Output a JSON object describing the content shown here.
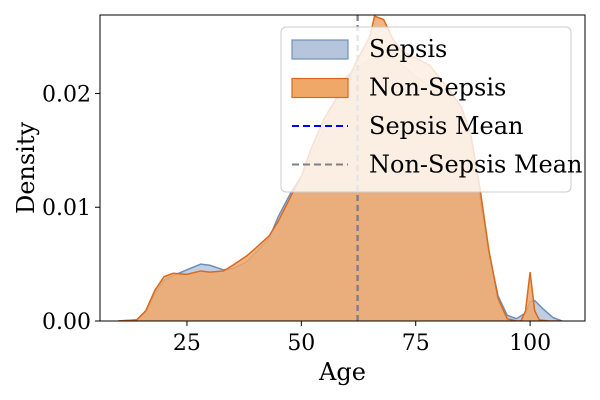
{
  "chart_data": {
    "type": "area",
    "xlabel": "Age",
    "ylabel": "Density",
    "xlim": [
      6,
      112
    ],
    "ylim": [
      0,
      0.0269
    ],
    "x_ticks": [
      25,
      50,
      75,
      100
    ],
    "x_tick_labels": [
      "25",
      "50",
      "75",
      "100"
    ],
    "y_ticks": [
      0,
      0.01,
      0.02
    ],
    "y_tick_labels": [
      "0.00",
      "0.01",
      "0.02"
    ],
    "grid": false,
    "legend_position": "top-right",
    "series": [
      {
        "name": "Sepsis",
        "kind": "density",
        "color": "#6f8fb8",
        "fill": "#b5c6dc",
        "x": [
          10,
          14,
          16,
          18,
          20,
          22,
          25,
          28,
          30,
          33,
          35,
          38,
          40,
          43,
          45,
          48,
          50,
          52,
          55,
          58,
          60,
          62,
          65,
          68,
          70,
          72,
          75,
          78,
          80,
          82,
          85,
          87,
          89,
          91,
          93,
          95,
          97,
          99,
          100,
          101,
          103,
          105,
          107
        ],
        "y": [
          0.0,
          0.0001,
          0.0008,
          0.0024,
          0.0036,
          0.004,
          0.0045,
          0.005,
          0.0049,
          0.0045,
          0.0046,
          0.0052,
          0.006,
          0.0073,
          0.0092,
          0.0115,
          0.0127,
          0.0145,
          0.017,
          0.02,
          0.0215,
          0.0222,
          0.023,
          0.0232,
          0.0232,
          0.0225,
          0.0215,
          0.0207,
          0.0205,
          0.02,
          0.0185,
          0.016,
          0.011,
          0.006,
          0.0022,
          0.0005,
          0.0002,
          0.0007,
          0.0017,
          0.0018,
          0.001,
          0.0003,
          0.0
        ]
      },
      {
        "name": "Non-Sepsis",
        "kind": "density",
        "color": "#d9691f",
        "fill": "#f0a868",
        "x": [
          10,
          14,
          16,
          18,
          20,
          22,
          25,
          28,
          30,
          33,
          35,
          38,
          40,
          43,
          45,
          48,
          50,
          52,
          55,
          58,
          60,
          62,
          65,
          66,
          68,
          70,
          72,
          75,
          78,
          80,
          82,
          85,
          87,
          89,
          91,
          93,
          95,
          97,
          98,
          99,
          100,
          101,
          102,
          104,
          107
        ],
        "y": [
          0.0,
          0.0001,
          0.0009,
          0.0027,
          0.0039,
          0.0042,
          0.0041,
          0.0044,
          0.0043,
          0.0044,
          0.0049,
          0.0057,
          0.0064,
          0.0075,
          0.0088,
          0.0112,
          0.0127,
          0.015,
          0.0178,
          0.0198,
          0.021,
          0.0228,
          0.025,
          0.0268,
          0.0265,
          0.0248,
          0.0237,
          0.0231,
          0.0225,
          0.0215,
          0.0205,
          0.0188,
          0.0165,
          0.0118,
          0.0062,
          0.002,
          0.0002,
          0.0,
          0.0,
          0.0009,
          0.0043,
          0.0009,
          0.0001,
          0.0,
          0.0
        ]
      },
      {
        "name": "Sepsis Mean",
        "kind": "vline",
        "color": "#0000ff",
        "dash": "dashed",
        "x": 62.3
      },
      {
        "name": "Non-Sepsis Mean",
        "kind": "vline",
        "color": "#808080",
        "dash": "dashed",
        "x": 62.3
      }
    ]
  }
}
